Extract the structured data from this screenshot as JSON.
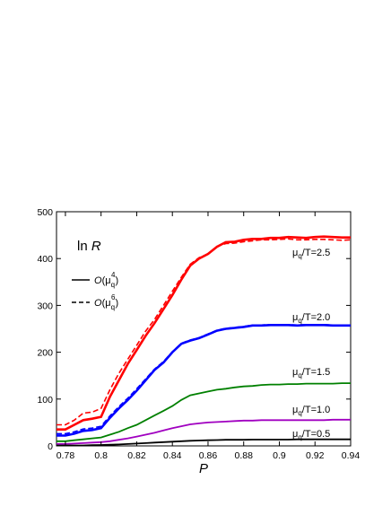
{
  "colors": {
    "red": "#ff0000",
    "blue": "#0000ff",
    "green": "#008000",
    "magenta": "#a000c0",
    "black": "#000000"
  },
  "chart_data": {
    "type": "line",
    "title": "",
    "inset_label": {
      "prefix": "ln",
      "var": "R"
    },
    "xlabel": "P",
    "ylabel": "",
    "xlim": [
      0.775,
      0.94
    ],
    "ylim": [
      0,
      500
    ],
    "xticks": [
      0.78,
      0.8,
      0.82,
      0.84,
      0.86,
      0.88,
      0.9,
      0.92,
      0.94
    ],
    "xtick_labels": [
      "0.78",
      "0.8",
      "0.82",
      "0.84",
      "0.86",
      "0.88",
      "0.9",
      "0.92",
      "0.94"
    ],
    "yticks": [
      0,
      100,
      200,
      300,
      400,
      500
    ],
    "ytick_labels": [
      "0",
      "100",
      "200",
      "300",
      "400",
      "500"
    ],
    "grid": false,
    "legend_position": "left",
    "legend": [
      {
        "style": "solid",
        "base": "O(μ",
        "sub": "q",
        "sup": "4",
        "close": ")"
      },
      {
        "style": "dashed",
        "base": "O(μ",
        "sub": "q",
        "sup": "6",
        "close": ")"
      }
    ],
    "x": [
      0.775,
      0.78,
      0.785,
      0.79,
      0.795,
      0.8,
      0.805,
      0.81,
      0.815,
      0.82,
      0.825,
      0.83,
      0.835,
      0.84,
      0.845,
      0.85,
      0.855,
      0.86,
      0.865,
      0.87,
      0.875,
      0.88,
      0.885,
      0.89,
      0.895,
      0.9,
      0.905,
      0.91,
      0.915,
      0.92,
      0.925,
      0.93,
      0.935,
      0.94
    ],
    "series": [
      {
        "name": "μq/T=2.5",
        "label": "μq/T=2.5",
        "color_key": "red",
        "solid": [
          35,
          35,
          45,
          55,
          58,
          62,
          105,
          140,
          175,
          205,
          235,
          262,
          292,
          322,
          355,
          385,
          400,
          410,
          425,
          435,
          436,
          440,
          442,
          442,
          444,
          444,
          446,
          445,
          444,
          446,
          447,
          446,
          445,
          445
        ],
        "dashed": [
          45,
          45,
          55,
          70,
          72,
          80,
          120,
          155,
          185,
          215,
          245,
          270,
          300,
          330,
          360,
          388,
          402,
          410,
          426,
          432,
          433,
          436,
          438,
          440,
          440,
          441,
          442,
          440,
          440,
          441,
          441,
          440,
          439,
          440
        ]
      },
      {
        "name": "μq/T=2.0",
        "label": "μq/T=2.0",
        "color_key": "blue",
        "solid": [
          22,
          22,
          26,
          32,
          34,
          38,
          60,
          80,
          98,
          118,
          140,
          162,
          178,
          200,
          218,
          225,
          230,
          238,
          246,
          250,
          252,
          254,
          257,
          257,
          258,
          258,
          258,
          257,
          258,
          258,
          258,
          257,
          257,
          257
        ],
        "dashed": [
          26,
          26,
          30,
          36,
          38,
          42,
          64,
          84,
          102,
          122,
          143,
          164,
          180,
          201,
          219,
          226,
          231,
          239,
          247,
          251,
          253,
          255,
          258,
          258,
          259,
          259,
          259,
          258,
          259,
          259,
          259,
          258,
          258,
          258
        ]
      },
      {
        "name": "μq/T=1.5",
        "label": "μq/T=1.5",
        "color_key": "green",
        "solid": [
          10,
          10,
          12,
          14,
          16,
          18,
          24,
          30,
          38,
          45,
          55,
          65,
          75,
          85,
          98,
          108,
          112,
          116,
          120,
          122,
          125,
          127,
          128,
          130,
          131,
          131,
          132,
          132,
          133,
          133,
          133,
          133,
          134,
          134
        ]
      },
      {
        "name": "μq/T=1.0",
        "label": "μq/T=1.0",
        "color_key": "magenta",
        "solid": [
          4,
          4,
          5,
          6,
          7,
          8,
          10,
          13,
          16,
          20,
          24,
          28,
          33,
          38,
          42,
          46,
          48,
          50,
          51,
          52,
          53,
          54,
          54,
          55,
          55,
          55,
          55,
          55,
          55,
          55,
          55,
          56,
          56,
          56
        ]
      },
      {
        "name": "μq/T=0.5",
        "label": "μq/T=0.5",
        "color_key": "black",
        "solid": [
          1,
          1,
          1,
          1,
          1.5,
          2,
          2.5,
          3,
          4,
          5,
          6,
          7,
          8,
          9,
          10,
          11,
          11.5,
          12,
          12.5,
          13,
          13,
          13,
          13.5,
          13.5,
          13.5,
          13.5,
          13.5,
          14,
          14,
          14,
          14,
          14,
          14,
          14
        ]
      }
    ]
  }
}
